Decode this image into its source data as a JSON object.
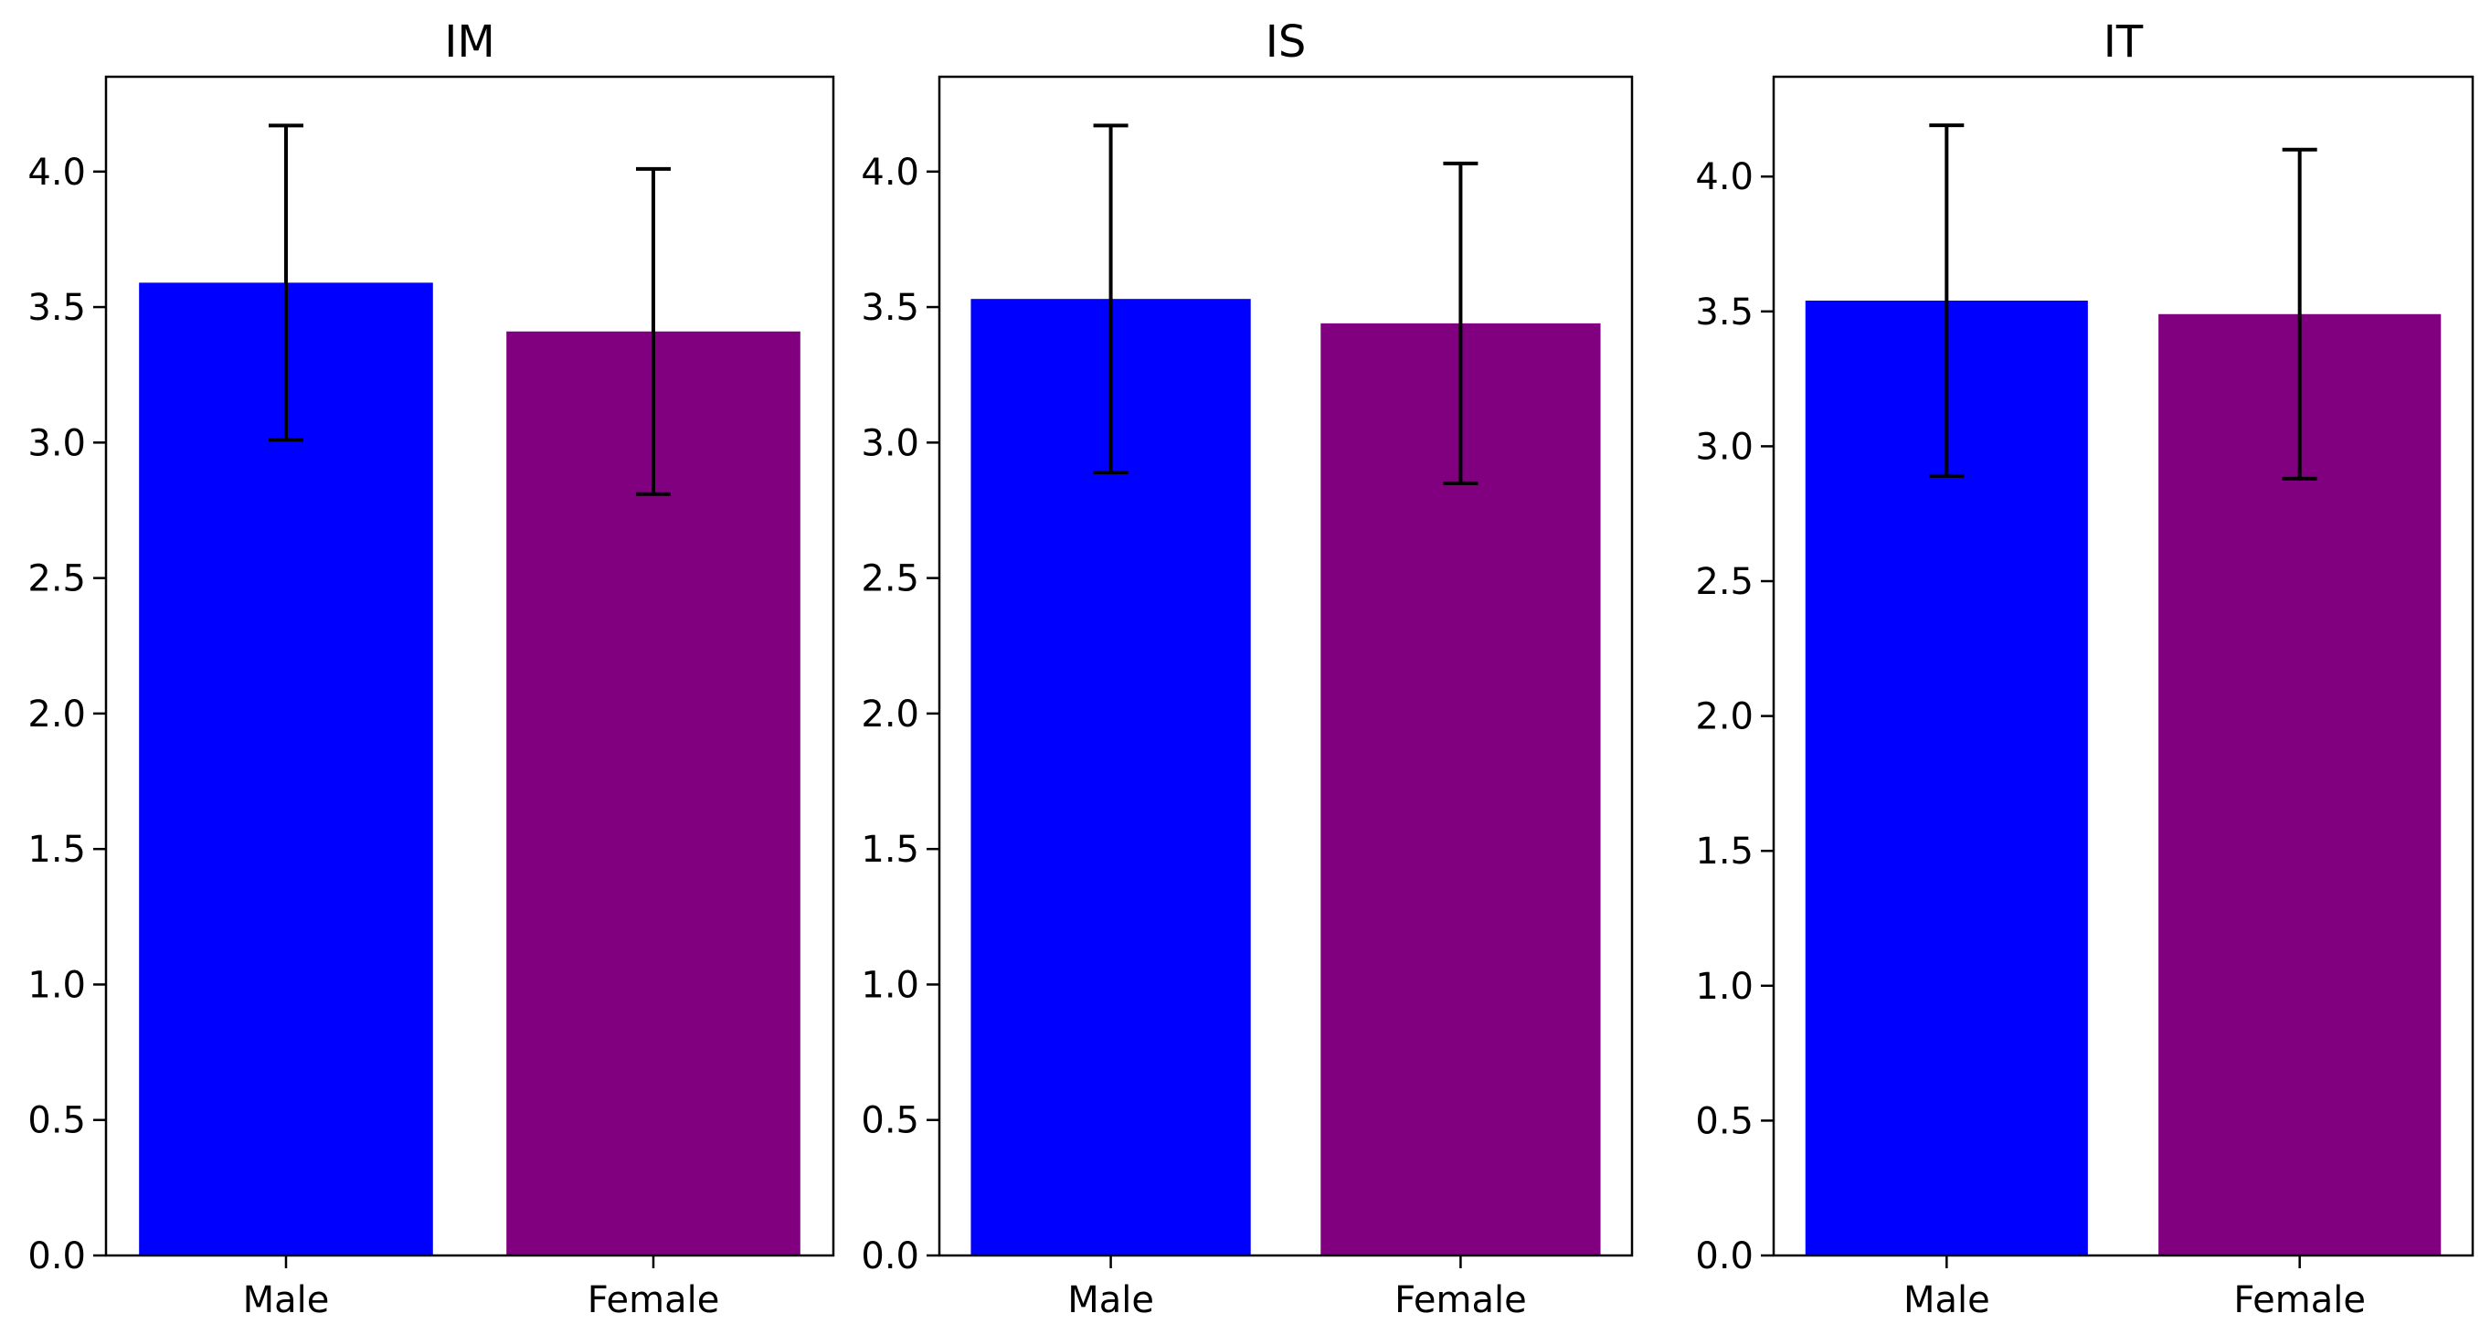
{
  "chart_data": [
    {
      "type": "bar",
      "title": "IM",
      "categories": [
        "Male",
        "Female"
      ],
      "values": [
        3.59,
        3.41
      ],
      "errors": [
        0.58,
        0.6
      ],
      "colors": [
        "#0000ff",
        "#800080"
      ],
      "ylim": [
        0,
        4.35
      ],
      "yticks": [
        0.0,
        0.5,
        1.0,
        1.5,
        2.0,
        2.5,
        3.0,
        3.5,
        4.0
      ],
      "ytick_labels": [
        "0.0",
        "0.5",
        "1.0",
        "1.5",
        "2.0",
        "2.5",
        "3.0",
        "3.5",
        "4.0"
      ],
      "xlabel": "",
      "ylabel": "",
      "grid": false
    },
    {
      "type": "bar",
      "title": "IS",
      "categories": [
        "Male",
        "Female"
      ],
      "values": [
        3.53,
        3.44
      ],
      "errors": [
        0.64,
        0.59
      ],
      "colors": [
        "#0000ff",
        "#800080"
      ],
      "ylim": [
        0,
        4.35
      ],
      "yticks": [
        0.0,
        0.5,
        1.0,
        1.5,
        2.0,
        2.5,
        3.0,
        3.5,
        4.0
      ],
      "ytick_labels": [
        "0.0",
        "0.5",
        "1.0",
        "1.5",
        "2.0",
        "2.5",
        "3.0",
        "3.5",
        "4.0"
      ],
      "xlabel": "",
      "ylabel": "",
      "grid": false
    },
    {
      "type": "bar",
      "title": "IT",
      "categories": [
        "Male",
        "Female"
      ],
      "values": [
        3.54,
        3.49
      ],
      "errors": [
        0.65,
        0.61
      ],
      "colors": [
        "#0000ff",
        "#800080"
      ],
      "ylim": [
        0,
        4.37
      ],
      "yticks": [
        0.0,
        0.5,
        1.0,
        1.5,
        2.0,
        2.5,
        3.0,
        3.5,
        4.0
      ],
      "ytick_labels": [
        "0.0",
        "0.5",
        "1.0",
        "1.5",
        "2.0",
        "2.5",
        "3.0",
        "3.5",
        "4.0"
      ],
      "xlabel": "",
      "ylabel": "",
      "grid": false
    }
  ]
}
